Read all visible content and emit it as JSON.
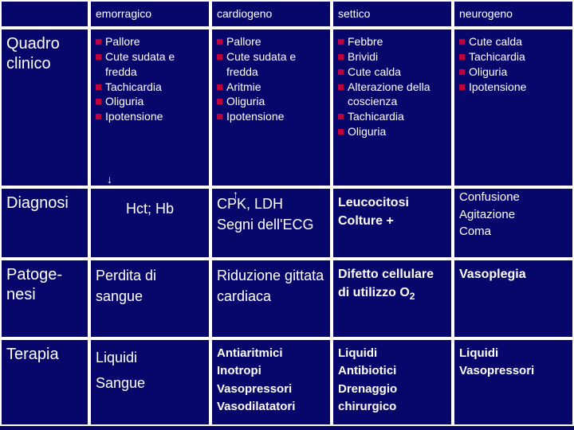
{
  "colors": {
    "background": "#07076b",
    "border": "#ffffff",
    "text": "#ffffff",
    "bullet": "#c00040"
  },
  "columns": [
    "",
    "emorragico",
    "cardiogeno",
    "settico",
    "neurogeno"
  ],
  "rows": {
    "quadro": {
      "label": "Quadro clinico",
      "emorragico": [
        "Pallore",
        "Cute sudata e fredda",
        "Tachicardia",
        "Oliguria",
        "Ipotensione"
      ],
      "cardiogeno": [
        "Pallore",
        "Cute sudata e fredda",
        "Aritmie",
        "Oliguria",
        "Ipotensione"
      ],
      "settico": [
        "Febbre",
        "Brividi",
        "Cute calda",
        "Alterazione della coscienza",
        "Tachicardia",
        "  Oliguria"
      ],
      "neurogeno": [
        "Cute calda",
        "Tachicardia",
        "Oliguria",
        "Ipotensione"
      ]
    },
    "diagnosi": {
      "label": "Diagnosi",
      "emorragico": "Hct; Hb",
      "cardiogeno": "    CPK, LDH\nSegni dell'ECG",
      "settico": "Leucocitosi\nColture +",
      "neurogeno": "Confusione\nAgitazione\nComa"
    },
    "patogenesi": {
      "label": "Patoge-\nnesi",
      "emorragico": "Perdita di sangue",
      "cardiogeno": "Riduzione gittata cardiaca",
      "settico_html": "Difetto cellulare di utilizzo O<span class=\"sub\">2</span>",
      "neurogeno": "Vasoplegia"
    },
    "terapia": {
      "label": "Terapia",
      "emorragico": "Liquidi\nSangue",
      "cardiogeno": "Antiaritmici\nInotropi\nVasopressori\nVasodilatatori",
      "settico": "Liquidi\nAntibiotici\nDrenaggio chirurgico",
      "neurogeno": "Liquidi\nVasopressori"
    }
  }
}
